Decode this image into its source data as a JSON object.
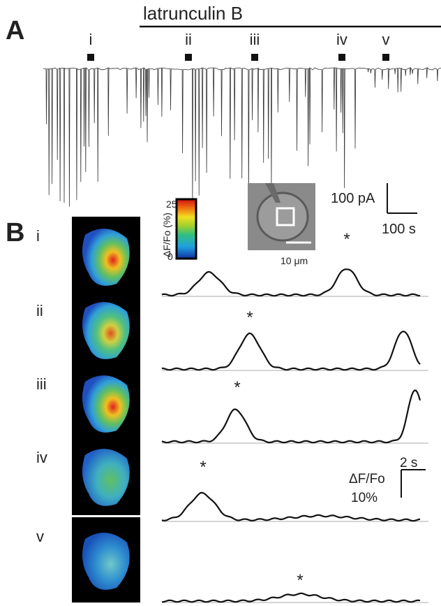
{
  "panel_a": {
    "label": "A",
    "drug_label": "latrunculin B",
    "epoch_labels": [
      "i",
      "ii",
      "iii",
      "iv",
      "v"
    ],
    "scale_bar": {
      "current": "100 pA",
      "time": "100 s"
    }
  },
  "panel_b": {
    "label": "B",
    "rows": [
      {
        "label": "i",
        "asterisk": "*"
      },
      {
        "label": "ii",
        "asterisk": "*"
      },
      {
        "label": "iii",
        "asterisk": "*"
      },
      {
        "label": "iv",
        "asterisk": "*"
      },
      {
        "label": "v",
        "asterisk": "*"
      }
    ],
    "colorbar": {
      "title": "ΔF/Fo (%)",
      "max": "25",
      "min": "0"
    },
    "inset_scale": "10 μm",
    "scale_bar": {
      "y_label": "ΔF/Fo",
      "y_value": "10%",
      "time": "2 s"
    }
  }
}
